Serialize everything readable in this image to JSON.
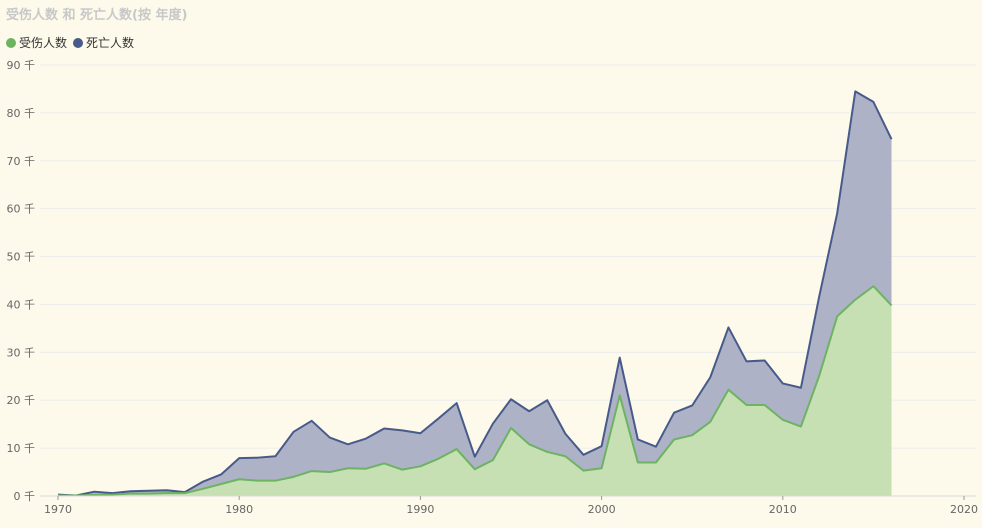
{
  "title": "受伤人数 和 死亡人数(按 年度)",
  "legend": {
    "injured_label": "受伤人数",
    "deaths_label": "死亡人数"
  },
  "colors": {
    "injured_line": "#6db361",
    "injured_fill": "#c6e0b4",
    "deaths_line": "#475a8a",
    "deaths_fill": "#aeb2c6",
    "grid": "#ececec",
    "background": "#fdfaeb"
  },
  "chart_data": {
    "type": "area",
    "stacked": true,
    "title": "受伤人数 和 死亡人数(按 年度)",
    "x": [
      1970,
      1971,
      1972,
      1973,
      1974,
      1975,
      1976,
      1977,
      1978,
      1979,
      1980,
      1981,
      1982,
      1983,
      1984,
      1985,
      1986,
      1987,
      1988,
      1989,
      1990,
      1991,
      1992,
      1993,
      1994,
      1995,
      1996,
      1997,
      1998,
      1999,
      2000,
      2001,
      2002,
      2003,
      2004,
      2005,
      2006,
      2007,
      2008,
      2009,
      2010,
      2011,
      2012,
      2013,
      2014,
      2015,
      2016
    ],
    "series": [
      {
        "name": "受伤人数",
        "values": [
          0.1,
          0.1,
          0.2,
          0.3,
          0.5,
          0.5,
          0.6,
          0.6,
          1.5,
          2.5,
          3.5,
          3.2,
          3.2,
          4.0,
          5.2,
          5.0,
          5.8,
          5.7,
          6.8,
          5.5,
          6.2,
          7.8,
          9.8,
          5.6,
          7.5,
          14.2,
          10.8,
          9.2,
          8.3,
          5.3,
          5.8,
          21.0,
          7.0,
          7.0,
          11.8,
          12.7,
          15.5,
          22.2,
          19.0,
          19.0,
          15.9,
          14.5,
          25.0,
          37.5,
          41.0,
          43.8,
          39.8
        ]
      },
      {
        "name": "死亡人数",
        "values": [
          0.2,
          0.0,
          0.7,
          0.3,
          0.5,
          0.6,
          0.6,
          0.2,
          1.5,
          2.0,
          4.4,
          4.8,
          5.1,
          9.4,
          10.5,
          7.2,
          5.0,
          6.3,
          7.3,
          8.2,
          6.9,
          8.4,
          9.6,
          2.6,
          7.6,
          6.0,
          6.9,
          10.8,
          4.7,
          3.3,
          4.6,
          7.9,
          4.8,
          3.3,
          5.6,
          6.2,
          9.3,
          13.0,
          9.1,
          9.3,
          7.6,
          8.1,
          16.5,
          21.5,
          43.5,
          38.5,
          34.7
        ]
      }
    ],
    "xlim": [
      1970,
      2020
    ],
    "ylim": [
      0,
      90
    ],
    "y_unit": "千",
    "x_ticks": [
      1970,
      1980,
      1990,
      2000,
      2010,
      2020
    ],
    "y_ticks": [
      0,
      10,
      20,
      30,
      40,
      50,
      60,
      70,
      80,
      90
    ],
    "grid": true,
    "legend_position": "top-left"
  }
}
